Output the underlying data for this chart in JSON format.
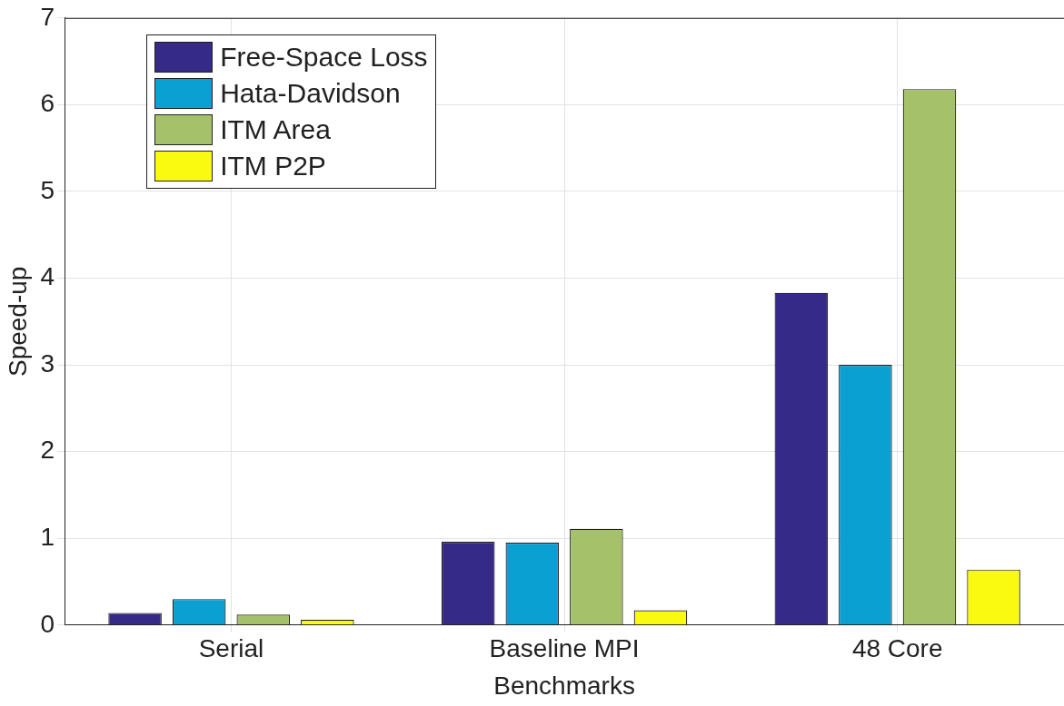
{
  "chart_data": {
    "type": "bar",
    "xlabel": "Benchmarks",
    "ylabel": "Speed-up",
    "categories": [
      "Serial",
      "Baseline MPI",
      "48 Core"
    ],
    "series": [
      {
        "name": "Free-Space Loss",
        "color": "#352a87",
        "values": [
          0.14,
          0.96,
          3.83
        ]
      },
      {
        "name": "Hata-Davidson",
        "color": "#0ba0d2",
        "values": [
          0.3,
          0.95,
          3.0
        ]
      },
      {
        "name": "ITM Area",
        "color": "#a5c26a",
        "values": [
          0.12,
          1.11,
          6.18
        ]
      },
      {
        "name": "ITM P2P",
        "color": "#f9fa0f",
        "values": [
          0.06,
          0.17,
          0.64
        ]
      }
    ],
    "ylim": [
      0,
      7
    ],
    "yticks": [
      0,
      1,
      2,
      3,
      4,
      5,
      6,
      7
    ],
    "grid": true,
    "legend": "top left"
  }
}
